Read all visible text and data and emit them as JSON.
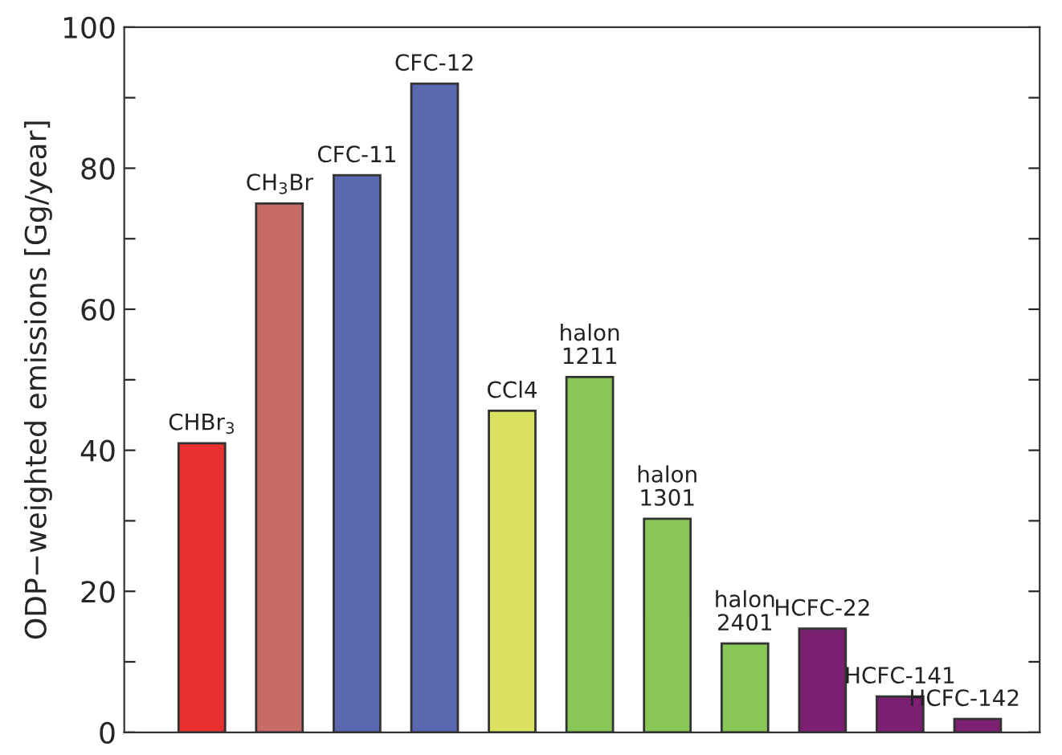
{
  "chart_data": {
    "type": "bar",
    "ylabel": "ODP−weighted emissions [Gg/year]",
    "categories": [
      "CHBr$_{3}$",
      "CH$_{3}$Br",
      "CFC-11",
      "CFC-12",
      "CCl4",
      "halon\n1211",
      "halon\n1301",
      "halon\n2401",
      "HCFC-22",
      "HCFC-141",
      "HCFC-142"
    ],
    "values": [
      41,
      75,
      79,
      92,
      45.6,
      50.4,
      30.3,
      12.6,
      14.7,
      5.1,
      1.9
    ],
    "colors": [
      "#e8302e",
      "#c76b66",
      "#5b67ae",
      "#5b67ae",
      "#dbe25f",
      "#88c657",
      "#88c657",
      "#88c657",
      "#7b2070",
      "#7b2070",
      "#7b2070"
    ],
    "ylim": [
      0,
      100
    ],
    "yticks": [
      0,
      {
        "value": 10,
        "label": null
      },
      20,
      {
        "value": 30,
        "label": null
      },
      40,
      {
        "value": 50,
        "label": null
      },
      60,
      {
        "value": 70,
        "label": null
      },
      80,
      {
        "value": 90,
        "label": null
      },
      100
    ],
    "grid": false,
    "legend": false
  }
}
